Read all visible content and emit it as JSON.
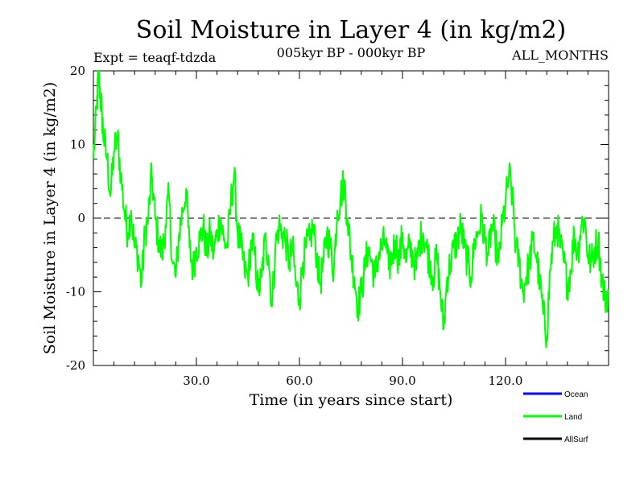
{
  "chart_data": {
    "type": "line",
    "title": "Soil Moisture in Layer 4 (in kg/m2)",
    "subtitle": "005kyr BP - 000kyr BP",
    "expt_label": "Expt = teaqf-tdzda",
    "months_label": "ALL_MONTHS",
    "xlabel": "Time (in years since start)",
    "ylabel": "Soil Moisture in Layer 4 (in kg/m2)",
    "xlim": [
      0,
      150
    ],
    "ylim": [
      -20,
      20
    ],
    "x_ticks": [
      30,
      60,
      90,
      120
    ],
    "x_tick_labels": [
      "30.0",
      "60.0",
      "90.0",
      "120.0"
    ],
    "y_ticks": [
      -20,
      -10,
      0,
      10,
      20
    ],
    "y_tick_labels": [
      "-20",
      "-10",
      "0",
      "10",
      "20"
    ],
    "zero_line": 0,
    "legend_position": "bottom-right",
    "series": [
      {
        "name": "Ocean",
        "color": "#0000ff",
        "x": [],
        "values": []
      },
      {
        "name": "Land",
        "color": "#00ff00",
        "x": [
          0,
          1,
          1.5,
          2,
          2.5,
          3,
          4,
          5,
          6,
          7,
          8,
          9,
          10,
          11,
          12,
          13,
          14,
          15,
          16,
          17,
          18,
          19,
          20,
          21,
          22,
          23,
          24,
          25,
          26,
          27,
          28,
          29,
          30,
          31,
          32,
          33,
          34,
          35,
          36,
          37,
          38,
          39,
          40,
          41,
          42,
          43,
          44,
          45,
          46,
          47,
          48,
          49,
          50,
          51,
          52,
          53,
          54,
          55,
          56,
          57,
          58,
          59,
          60,
          61,
          62,
          63,
          64,
          65,
          66,
          67,
          68,
          69,
          70,
          71,
          72,
          73,
          74,
          75,
          76,
          77,
          78,
          79,
          80,
          81,
          82,
          83,
          84,
          85,
          86,
          87,
          88,
          89,
          90,
          91,
          92,
          93,
          94,
          95,
          96,
          97,
          98,
          99,
          100,
          101,
          102,
          103,
          104,
          105,
          106,
          107,
          108,
          109,
          110,
          111,
          112,
          113,
          114,
          115,
          116,
          117,
          118,
          119,
          120,
          121,
          122,
          123,
          124,
          125,
          126,
          127,
          128,
          129,
          130,
          131,
          132,
          133,
          134,
          135,
          136,
          137,
          138,
          139,
          140,
          141,
          142,
          143,
          144,
          145,
          146,
          147,
          148,
          149,
          150
        ],
        "values": [
          8,
          15,
          19.5,
          17,
          14,
          11,
          8,
          3,
          9,
          11,
          6,
          1,
          -2,
          1,
          -4,
          -5,
          -9,
          -2,
          0,
          6,
          0,
          -3,
          -5,
          -1,
          3,
          -6,
          -8,
          -2,
          1,
          4,
          -4,
          -7,
          -4,
          -3,
          -1,
          -5,
          -2,
          -5,
          -2,
          0,
          -3,
          -4,
          2,
          6,
          -2,
          -4,
          -7,
          -8,
          -3,
          -5,
          -10,
          -8,
          -3,
          -5,
          -12,
          -4,
          -1,
          -2,
          -3,
          -6,
          -4,
          -9,
          -11,
          -6,
          -4,
          -3,
          -1,
          -5,
          -9,
          -6,
          -2,
          -4,
          -7,
          1,
          3,
          5,
          0,
          -5,
          -8,
          -12,
          -10,
          -7,
          -4,
          -6,
          -8,
          -5,
          -4,
          -3,
          -7,
          -5,
          -3,
          -6,
          -2,
          -6,
          -4,
          -5,
          -7,
          -3,
          -2,
          -4,
          -6,
          -8,
          -5,
          -10,
          -15,
          -8,
          -6,
          -4,
          -3,
          -1,
          -4,
          -6,
          -8,
          -3,
          -2,
          0,
          -3,
          -5,
          -1,
          -3,
          -6,
          -1,
          2,
          6,
          3,
          -4,
          -6,
          -10,
          -8,
          -6,
          -3,
          -5,
          -9,
          -13,
          -16,
          -7,
          -3,
          -1,
          -4,
          -6,
          -9,
          -7,
          -2,
          -5,
          -1,
          0,
          -5,
          -6,
          -4,
          -3,
          -8,
          -11,
          -10
        ]
      },
      {
        "name": "AllSurf",
        "color": "#000000",
        "x": [],
        "values": []
      }
    ]
  },
  "legend": {
    "items": [
      {
        "label": "Ocean",
        "color": "#0000ff"
      },
      {
        "label": "Land",
        "color": "#00ff00"
      },
      {
        "label": "AllSurf",
        "color": "#000000"
      }
    ]
  }
}
